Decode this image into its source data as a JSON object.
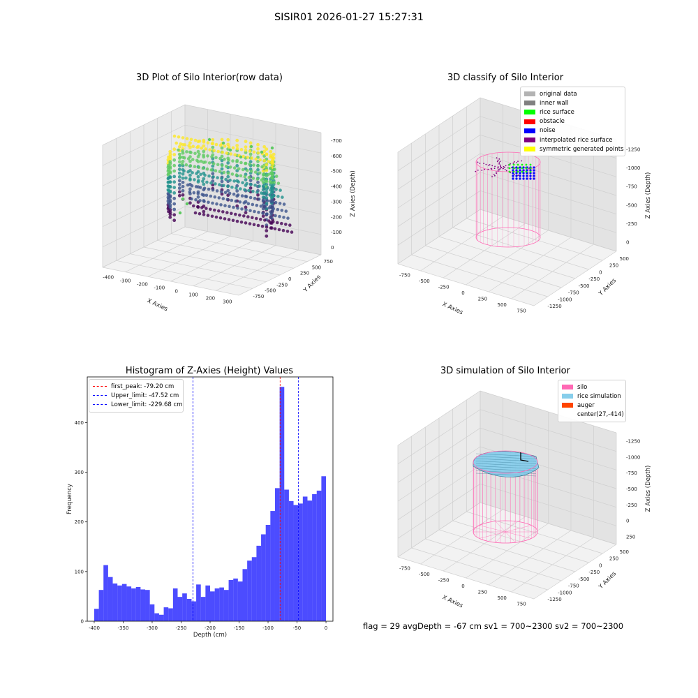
{
  "suptitle": "SISIR01 2026-01-27 15:27:31",
  "footer": "flag = 29  avgDepth = -67 cm   sv1 = 700~2300  sv2 = 700~2300",
  "chart_data": [
    {
      "type": "scatter",
      "panel": "top-left",
      "title": "3D Plot of Silo Interior(row data)",
      "xlabel": "X Axies",
      "ylabel": "Y Axies",
      "zlabel": "Z Axies (Depth)",
      "xticks": [
        "-400",
        "-300",
        "-200",
        "-100",
        "0",
        "100",
        "200",
        "300"
      ],
      "yticks": [
        "-750",
        "-500",
        "-250",
        "0",
        "250",
        "500",
        "750"
      ],
      "zticks": [
        "0",
        "-100",
        "-200",
        "-300",
        "-400",
        "-500",
        "-600",
        "-700"
      ],
      "colormap": [
        "#440154",
        "#3b528b",
        "#21918c",
        "#5ec962",
        "#fde725"
      ],
      "grid": true
    },
    {
      "type": "scatter",
      "panel": "top-right",
      "title": "3D classify of Silo Interior",
      "xlabel": "X Axies",
      "ylabel": "Y Axies",
      "zlabel": "Z Axies (Depth)",
      "xticks": [
        "-750",
        "-500",
        "-250",
        "0",
        "250",
        "500",
        "750"
      ],
      "yticks": [
        "-1250",
        "-1000",
        "-750",
        "-500",
        "-250",
        "0",
        "250",
        "500"
      ],
      "zticks": [
        "0",
        "-250",
        "-500",
        "-750",
        "-1000",
        "-1250"
      ],
      "legend": [
        {
          "label": "original data",
          "color": "#b3b3b3"
        },
        {
          "label": "inner wall",
          "color": "#808080"
        },
        {
          "label": "rice surface",
          "color": "#00ff00"
        },
        {
          "label": "obstacle",
          "color": "#ff0000"
        },
        {
          "label": "noise",
          "color": "#0000ff"
        },
        {
          "label": "interpolated rice surface",
          "color": "#800080"
        },
        {
          "label": "symmetric generated points",
          "color": "#ffff00"
        }
      ],
      "legend_position": "top-right",
      "grid": true
    },
    {
      "type": "bar",
      "panel": "bottom-left",
      "title": "Histogram of Z-Axies (Height) Values",
      "xlabel": "Depth (cm)",
      "ylabel": "Frequency",
      "xlim": [
        -412,
        12
      ],
      "ylim": [
        0,
        492
      ],
      "xticks": [
        -400,
        -350,
        -300,
        -250,
        -200,
        -150,
        -100,
        -50,
        0
      ],
      "yticks": [
        0,
        100,
        200,
        300,
        400
      ],
      "bin_start": -400,
      "bin_width": 8,
      "values": [
        25,
        63,
        113,
        89,
        76,
        72,
        75,
        70,
        66,
        69,
        64,
        63,
        34,
        16,
        13,
        28,
        26,
        66,
        49,
        56,
        45,
        40,
        74,
        49,
        72,
        60,
        66,
        68,
        63,
        83,
        86,
        80,
        105,
        122,
        129,
        152,
        175,
        194,
        222,
        268,
        472,
        265,
        242,
        234,
        237,
        251,
        243,
        256,
        263,
        292
      ],
      "bar_color": "#0000ff",
      "lines": [
        {
          "label": "first_peak: -79.20 cm",
          "x": -79.2,
          "color": "#ff0000"
        },
        {
          "label": "Upper_limit: -47.52 cm",
          "x": -47.52,
          "color": "#0000ff"
        },
        {
          "label": "Lower_limit: -229.68 cm",
          "x": -229.68,
          "color": "#0000ff"
        }
      ],
      "legend_position": "top-left"
    },
    {
      "type": "surface",
      "panel": "bottom-right",
      "title": "3D simulation of Silo Interior",
      "xlabel": "X Axies",
      "ylabel": "Y Axies",
      "zlabel": "Z Axies (Depth)",
      "xticks": [
        "-750",
        "-500",
        "-250",
        "0",
        "250",
        "500",
        "750"
      ],
      "yticks": [
        "-1250",
        "-1000",
        "-750",
        "-500",
        "-250",
        "0",
        "250",
        "500"
      ],
      "zticks": [
        "250",
        "0",
        "-250",
        "-500",
        "-750",
        "-1000",
        "-1250"
      ],
      "legend": [
        {
          "label": "silo",
          "color": "#ff69b4"
        },
        {
          "label": "rice simulation",
          "color": "#87ceeb"
        },
        {
          "label": "auger",
          "color": "#ff4500"
        },
        {
          "label": "center(27,-414)",
          "color": ""
        }
      ],
      "legend_position": "top-right",
      "grid": true
    }
  ]
}
